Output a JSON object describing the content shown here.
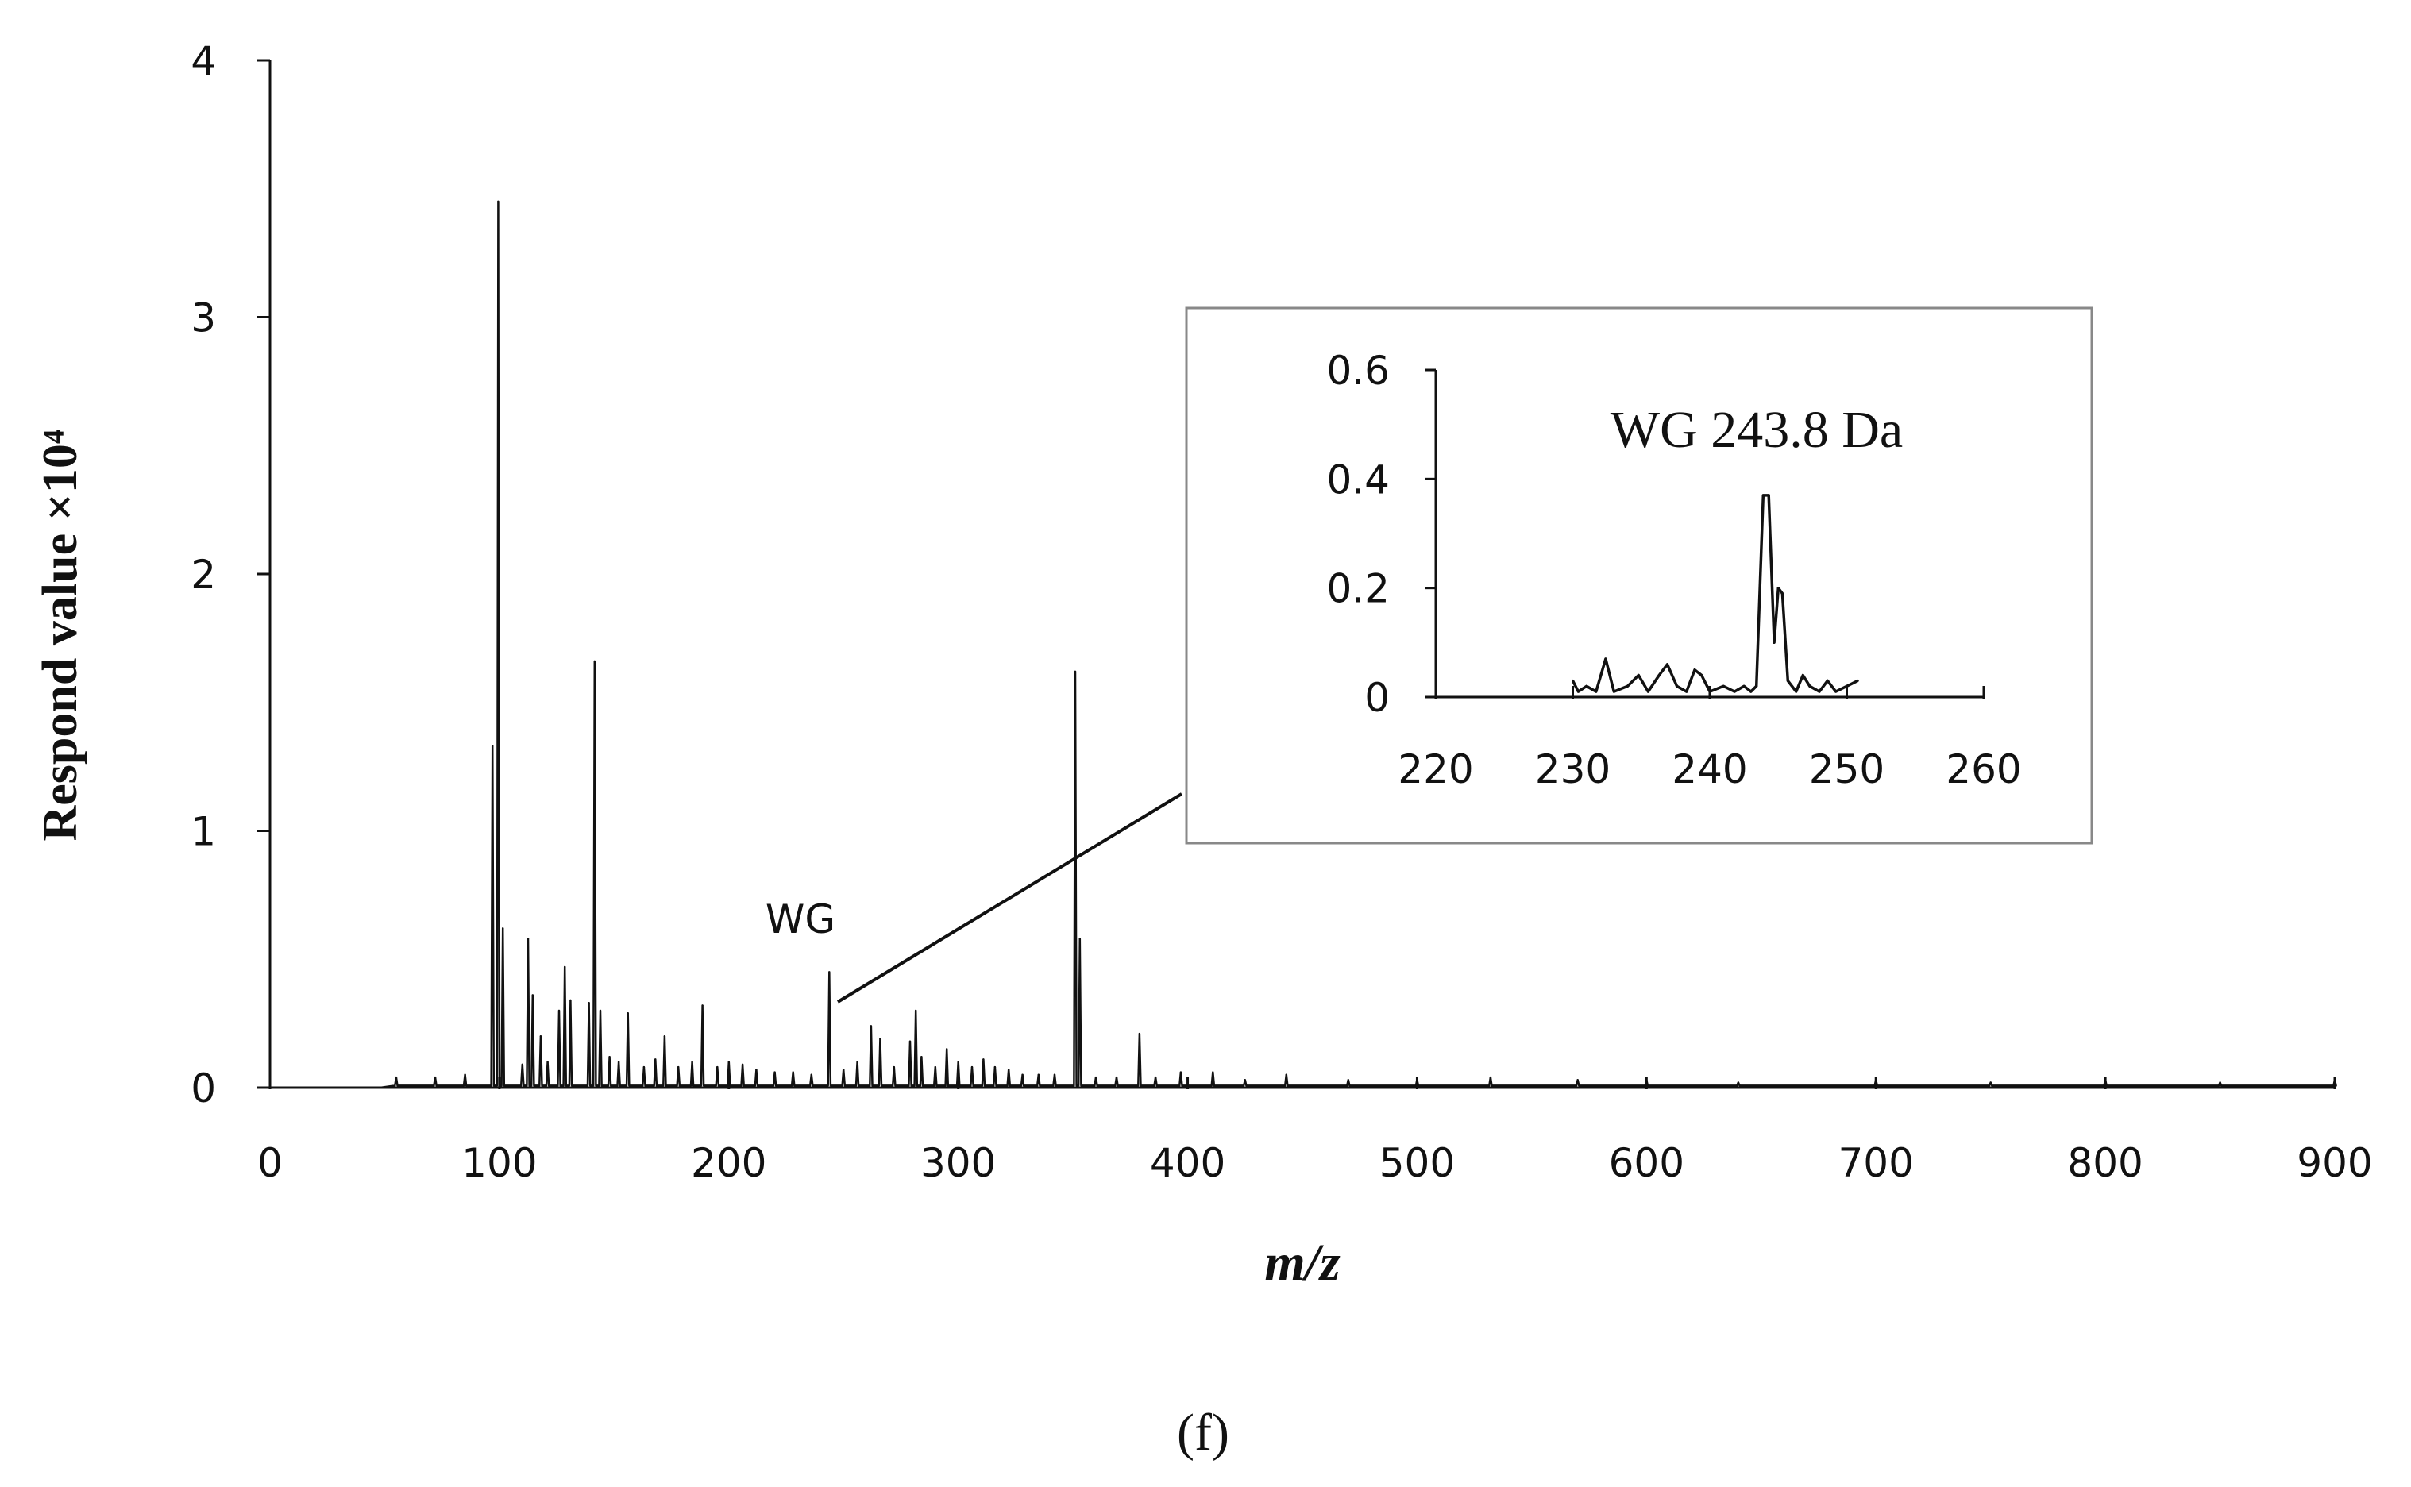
{
  "chart_data": {
    "main": {
      "type": "line",
      "title": "",
      "xlabel": "m/z",
      "ylabel": "Respond value ×10⁴",
      "xlim": [
        0,
        900
      ],
      "ylim": [
        0,
        4
      ],
      "x_ticks": [
        "0",
        "100",
        "200",
        "300",
        "400",
        "500",
        "600",
        "700",
        "800",
        "900"
      ],
      "y_ticks": [
        "0",
        "1",
        "2",
        "3",
        "4"
      ],
      "annotation": "WG",
      "peaks": [
        {
          "mz": 55,
          "v": 0.04
        },
        {
          "mz": 72,
          "v": 0.04
        },
        {
          "mz": 85,
          "v": 0.05
        },
        {
          "mz": 97,
          "v": 1.33
        },
        {
          "mz": 99.5,
          "v": 3.45
        },
        {
          "mz": 101.5,
          "v": 0.62
        },
        {
          "mz": 110,
          "v": 0.09
        },
        {
          "mz": 112.5,
          "v": 0.58
        },
        {
          "mz": 114.5,
          "v": 0.36
        },
        {
          "mz": 118,
          "v": 0.2
        },
        {
          "mz": 121,
          "v": 0.1
        },
        {
          "mz": 126,
          "v": 0.3
        },
        {
          "mz": 128.5,
          "v": 0.47
        },
        {
          "mz": 131,
          "v": 0.34
        },
        {
          "mz": 139,
          "v": 0.33
        },
        {
          "mz": 141.5,
          "v": 1.66
        },
        {
          "mz": 144,
          "v": 0.3
        },
        {
          "mz": 148,
          "v": 0.12
        },
        {
          "mz": 152,
          "v": 0.1
        },
        {
          "mz": 156,
          "v": 0.29
        },
        {
          "mz": 163,
          "v": 0.08
        },
        {
          "mz": 168,
          "v": 0.11
        },
        {
          "mz": 172,
          "v": 0.2
        },
        {
          "mz": 178,
          "v": 0.08
        },
        {
          "mz": 184,
          "v": 0.1
        },
        {
          "mz": 188.5,
          "v": 0.32
        },
        {
          "mz": 195,
          "v": 0.08
        },
        {
          "mz": 200,
          "v": 0.1
        },
        {
          "mz": 206,
          "v": 0.09
        },
        {
          "mz": 212,
          "v": 0.07
        },
        {
          "mz": 220,
          "v": 0.06
        },
        {
          "mz": 228,
          "v": 0.06
        },
        {
          "mz": 236,
          "v": 0.05
        },
        {
          "mz": 243.8,
          "v": 0.45
        },
        {
          "mz": 250,
          "v": 0.07
        },
        {
          "mz": 256,
          "v": 0.1
        },
        {
          "mz": 262,
          "v": 0.24
        },
        {
          "mz": 266,
          "v": 0.19
        },
        {
          "mz": 272,
          "v": 0.08
        },
        {
          "mz": 279,
          "v": 0.18
        },
        {
          "mz": 281.5,
          "v": 0.3
        },
        {
          "mz": 284,
          "v": 0.12
        },
        {
          "mz": 290,
          "v": 0.08
        },
        {
          "mz": 295,
          "v": 0.15
        },
        {
          "mz": 300,
          "v": 0.1
        },
        {
          "mz": 306,
          "v": 0.08
        },
        {
          "mz": 311,
          "v": 0.11
        },
        {
          "mz": 316,
          "v": 0.08
        },
        {
          "mz": 322,
          "v": 0.07
        },
        {
          "mz": 328,
          "v": 0.05
        },
        {
          "mz": 335,
          "v": 0.05
        },
        {
          "mz": 342,
          "v": 0.05
        },
        {
          "mz": 351,
          "v": 1.62
        },
        {
          "mz": 353,
          "v": 0.58
        },
        {
          "mz": 360,
          "v": 0.04
        },
        {
          "mz": 369,
          "v": 0.04
        },
        {
          "mz": 379,
          "v": 0.21
        },
        {
          "mz": 386,
          "v": 0.04
        },
        {
          "mz": 397,
          "v": 0.06
        },
        {
          "mz": 411,
          "v": 0.06
        },
        {
          "mz": 425,
          "v": 0.03
        },
        {
          "mz": 443,
          "v": 0.05
        },
        {
          "mz": 470,
          "v": 0.03
        },
        {
          "mz": 500,
          "v": 0.03
        },
        {
          "mz": 532,
          "v": 0.04
        },
        {
          "mz": 570,
          "v": 0.03
        },
        {
          "mz": 600,
          "v": 0.03
        },
        {
          "mz": 640,
          "v": 0.02
        },
        {
          "mz": 700,
          "v": 0.03
        },
        {
          "mz": 750,
          "v": 0.02
        },
        {
          "mz": 800,
          "v": 0.03
        },
        {
          "mz": 850,
          "v": 0.02
        },
        {
          "mz": 900,
          "v": 0.03
        }
      ]
    },
    "inset": {
      "type": "line",
      "title": "WG 243.8 Da",
      "xlim": [
        220,
        260
      ],
      "ylim": [
        0,
        0.6
      ],
      "x_ticks": [
        "220",
        "230",
        "240",
        "250",
        "260"
      ],
      "y_ticks": [
        "0",
        "0.2",
        "0.4",
        "0.6"
      ],
      "series": [
        {
          "x": 230,
          "y": 0.03
        },
        {
          "x": 230.4,
          "y": 0.01
        },
        {
          "x": 231,
          "y": 0.02
        },
        {
          "x": 231.7,
          "y": 0.01
        },
        {
          "x": 232.4,
          "y": 0.07
        },
        {
          "x": 233,
          "y": 0.01
        },
        {
          "x": 234,
          "y": 0.02
        },
        {
          "x": 234.8,
          "y": 0.04
        },
        {
          "x": 235.5,
          "y": 0.01
        },
        {
          "x": 236.3,
          "y": 0.04
        },
        {
          "x": 236.9,
          "y": 0.06
        },
        {
          "x": 237.6,
          "y": 0.02
        },
        {
          "x": 238.3,
          "y": 0.01
        },
        {
          "x": 238.9,
          "y": 0.05
        },
        {
          "x": 239.4,
          "y": 0.04
        },
        {
          "x": 240,
          "y": 0.01
        },
        {
          "x": 241,
          "y": 0.02
        },
        {
          "x": 241.8,
          "y": 0.01
        },
        {
          "x": 242.5,
          "y": 0.02
        },
        {
          "x": 243,
          "y": 0.01
        },
        {
          "x": 243.4,
          "y": 0.02
        },
        {
          "x": 243.9,
          "y": 0.37
        },
        {
          "x": 244.3,
          "y": 0.37
        },
        {
          "x": 244.7,
          "y": 0.1
        },
        {
          "x": 245,
          "y": 0.2
        },
        {
          "x": 245.3,
          "y": 0.19
        },
        {
          "x": 245.7,
          "y": 0.03
        },
        {
          "x": 246.3,
          "y": 0.01
        },
        {
          "x": 246.8,
          "y": 0.04
        },
        {
          "x": 247.3,
          "y": 0.02
        },
        {
          "x": 248,
          "y": 0.01
        },
        {
          "x": 248.6,
          "y": 0.03
        },
        {
          "x": 249.2,
          "y": 0.01
        },
        {
          "x": 250,
          "y": 0.02
        },
        {
          "x": 250.8,
          "y": 0.03
        }
      ]
    }
  },
  "caption": "(f)"
}
